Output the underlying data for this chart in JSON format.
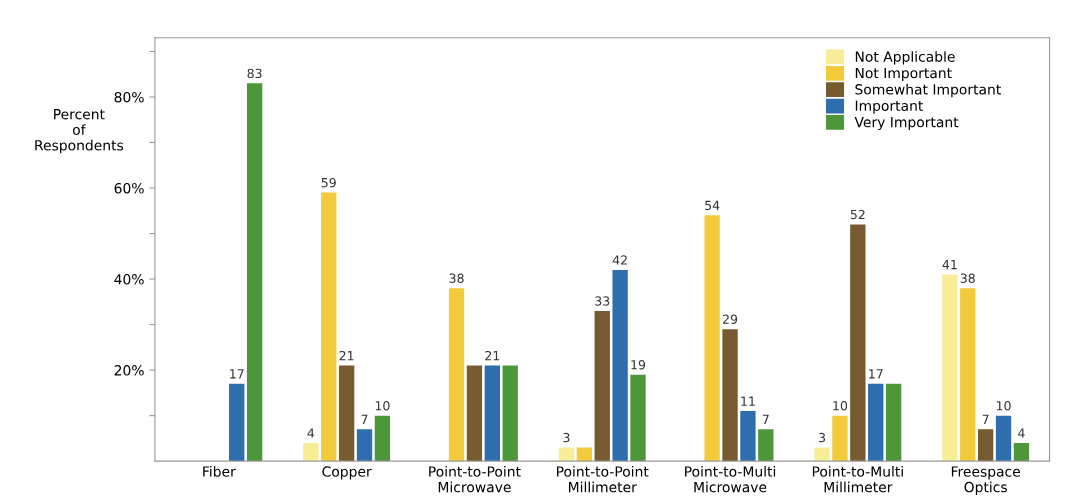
{
  "chart_data": {
    "type": "bar",
    "categories": [
      "Fiber",
      "Copper",
      "Point-to-Point\nMicrowave",
      "Point-to-Point\nMillimeter",
      "Point-to-Multi\nMicrowave",
      "Point-to-Multi\nMillimeter",
      "Freespace\nOptics"
    ],
    "ylabel": "Percent\nof\nRespondents",
    "ylim": [
      0,
      93
    ],
    "yticks": [
      {
        "value": 10,
        "label": null
      },
      {
        "value": 20,
        "label": "20%"
      },
      {
        "value": 30,
        "label": null
      },
      {
        "value": 40,
        "label": "40%"
      },
      {
        "value": 50,
        "label": null
      },
      {
        "value": 60,
        "label": "60%"
      },
      {
        "value": 70,
        "label": null
      },
      {
        "value": 80,
        "label": "80%"
      },
      {
        "value": 90,
        "label": null
      }
    ],
    "grid": false,
    "legend": "top right",
    "series": [
      {
        "name": "Not Applicable",
        "color": "#f8ec96",
        "values": [
          0,
          4,
          0,
          3,
          0,
          3,
          41
        ],
        "value_labels": [
          null,
          "4",
          null,
          "3",
          null,
          "3",
          "41"
        ]
      },
      {
        "name": "Not Important",
        "color": "#f2cb3c",
        "values": [
          0,
          59,
          38,
          3,
          54,
          10,
          38
        ],
        "value_labels": [
          null,
          "59",
          "38",
          null,
          "54",
          "10",
          "38"
        ]
      },
      {
        "name": "Somewhat Important",
        "color": "#775a2f",
        "values": [
          0,
          21,
          21,
          33,
          29,
          52,
          7
        ],
        "value_labels": [
          null,
          "21",
          null,
          "33",
          "29",
          "52",
          "7"
        ]
      },
      {
        "name": "Important",
        "color": "#2e6eae",
        "values": [
          17,
          7,
          21,
          42,
          11,
          17,
          10
        ],
        "value_labels": [
          "17",
          "7",
          "21",
          "42",
          "11",
          "17",
          "10"
        ]
      },
      {
        "name": "Very Important",
        "color": "#4b973a",
        "values": [
          83,
          10,
          21,
          19,
          7,
          17,
          4
        ],
        "value_labels": [
          "83",
          "10",
          null,
          "19",
          "7",
          null,
          "4"
        ]
      }
    ]
  }
}
